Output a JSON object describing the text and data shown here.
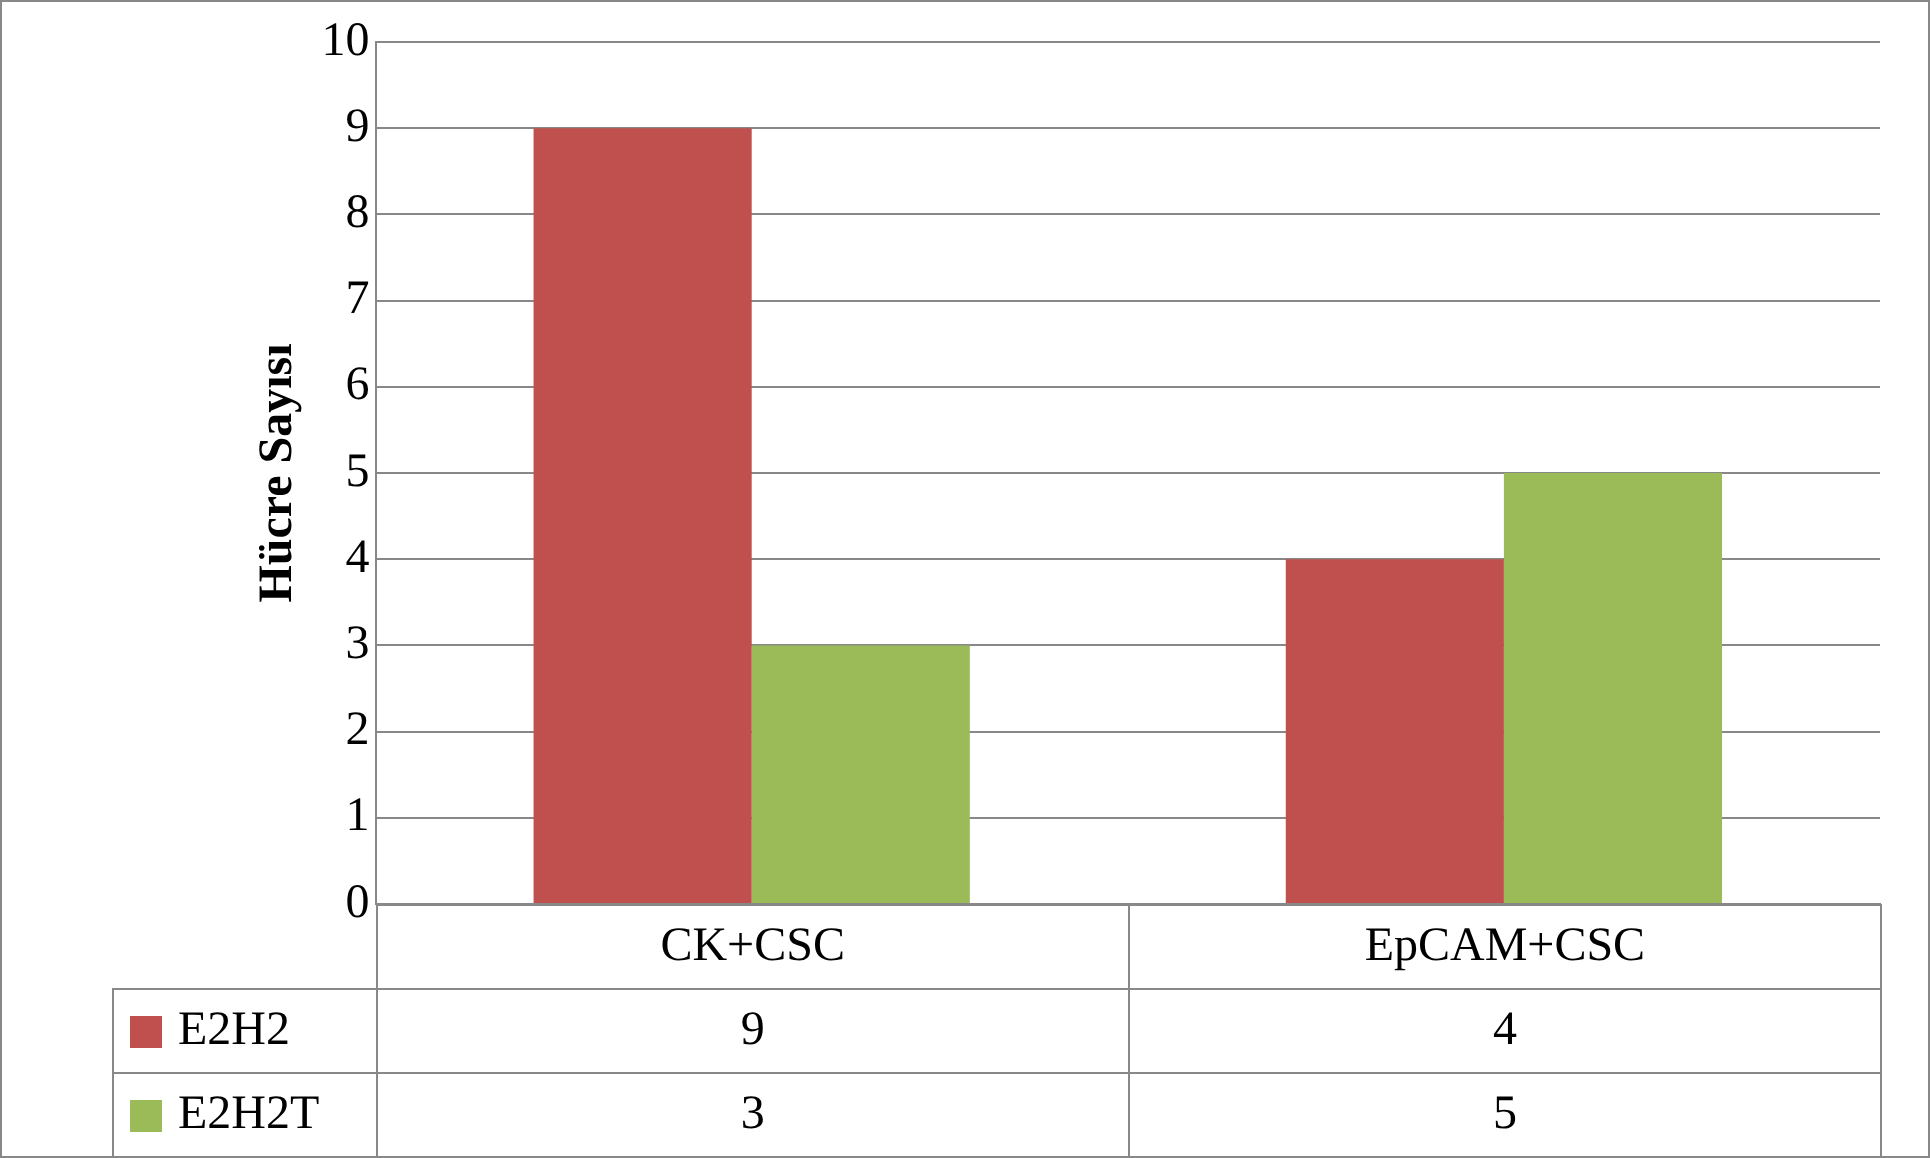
{
  "chart_data": {
    "type": "bar",
    "ylabel": "Hücre Sayısı",
    "categories": [
      "CK+CSC",
      "EpCAM+CSC"
    ],
    "series": [
      {
        "name": "E2H2",
        "color": "#c0504d",
        "values": [
          9,
          4
        ]
      },
      {
        "name": "E2H2T",
        "color": "#9bbb59",
        "values": [
          3,
          5
        ]
      }
    ],
    "ylim": [
      0,
      10
    ],
    "yticks": [
      0,
      1,
      2,
      3,
      4,
      5,
      6,
      7,
      8,
      9,
      10
    ],
    "grid": "y",
    "legend": "bottom",
    "data_labels": true
  }
}
